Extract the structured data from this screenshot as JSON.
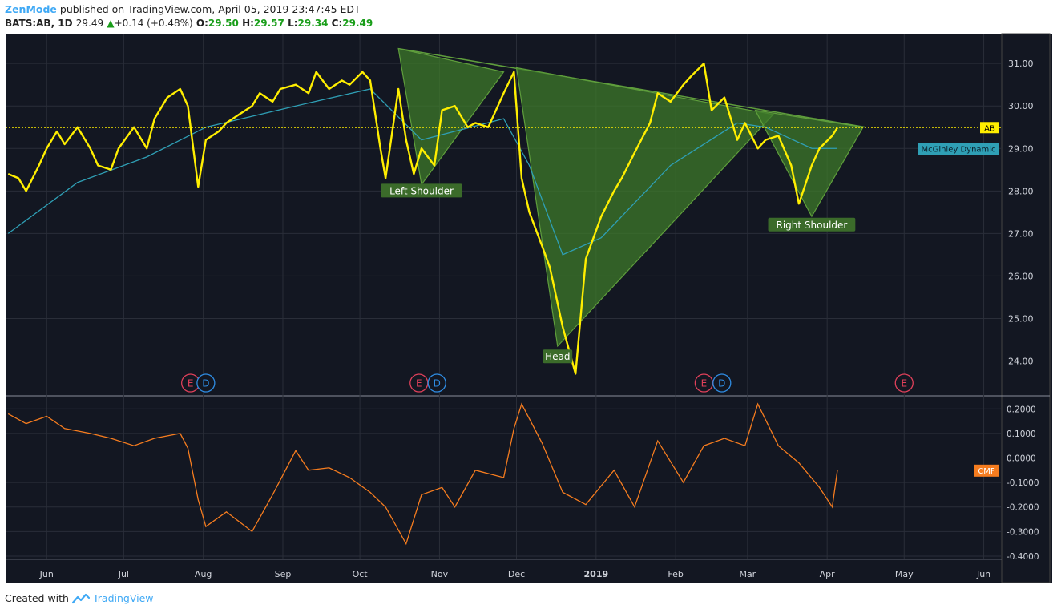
{
  "header": {
    "brand": "ZenMode",
    "published": "published on TradingView.com, April 05, 2019 23:47:45 EDT",
    "symbol": "BATS:AB, 1D",
    "last": "29.49",
    "change": "+0.14 (+0.48%)",
    "open_label": "O:",
    "open": "29.50",
    "high_label": "H:",
    "high": "29.57",
    "low_label": "L:",
    "low": "29.34",
    "close_label": "C:",
    "close": "29.49"
  },
  "footer": {
    "created_with": "Created with",
    "tradingview": "TradingView"
  },
  "colors": {
    "background": "#131722",
    "price": "#ffee00",
    "mcginley": "#2f9fb5",
    "cmf": "#f57c1f",
    "pattern_fill": "#3d7a2a",
    "pattern_stroke": "#5f9e3c",
    "earnings": "#e0405a",
    "dividend": "#2f8de4",
    "grid": "#2a2e39",
    "axis_text": "#d1d4dc"
  },
  "chart_data": [
    {
      "type": "line",
      "series": [
        {
          "name": "AB",
          "x": [
            "2018-05-17",
            "2018-05-21",
            "2018-05-24",
            "2018-05-29",
            "2018-06-01",
            "2018-06-05",
            "2018-06-08",
            "2018-06-13",
            "2018-06-18",
            "2018-06-21",
            "2018-06-26",
            "2018-06-29",
            "2018-07-05",
            "2018-07-10",
            "2018-07-13",
            "2018-07-18",
            "2018-07-23",
            "2018-07-26",
            "2018-07-30",
            "2018-08-02",
            "2018-08-07",
            "2018-08-10",
            "2018-08-15",
            "2018-08-20",
            "2018-08-23",
            "2018-08-28",
            "2018-08-31",
            "2018-09-06",
            "2018-09-11",
            "2018-09-14",
            "2018-09-19",
            "2018-09-24",
            "2018-09-27",
            "2018-10-02",
            "2018-10-05",
            "2018-10-09",
            "2018-10-11",
            "2018-10-16",
            "2018-10-19",
            "2018-10-22",
            "2018-10-25",
            "2018-10-30",
            "2018-11-02",
            "2018-11-07",
            "2018-11-12",
            "2018-11-15",
            "2018-11-20",
            "2018-11-26",
            "2018-11-30",
            "2018-12-03",
            "2018-12-06",
            "2018-12-11",
            "2018-12-14",
            "2018-12-19",
            "2018-12-24",
            "2018-12-28",
            "2019-01-03",
            "2019-01-08",
            "2019-01-11",
            "2019-01-16",
            "2019-01-22",
            "2019-01-25",
            "2019-01-30",
            "2019-02-04",
            "2019-02-07",
            "2019-02-12",
            "2019-02-15",
            "2019-02-20",
            "2019-02-25",
            "2019-02-28",
            "2019-03-05",
            "2019-03-08",
            "2019-03-13",
            "2019-03-18",
            "2019-03-21",
            "2019-03-26",
            "2019-03-29",
            "2019-04-03",
            "2019-04-05"
          ],
          "values": [
            28.4,
            28.3,
            28.0,
            28.6,
            29.0,
            29.4,
            29.1,
            29.5,
            29.0,
            28.6,
            28.5,
            29.0,
            29.5,
            29.0,
            29.7,
            30.2,
            30.4,
            30.0,
            28.1,
            29.2,
            29.4,
            29.6,
            29.8,
            30.0,
            30.3,
            30.1,
            30.4,
            30.5,
            30.3,
            30.8,
            30.4,
            30.6,
            30.5,
            30.8,
            30.6,
            29.0,
            28.3,
            30.4,
            29.2,
            28.4,
            29.0,
            28.6,
            29.9,
            30.0,
            29.5,
            29.6,
            29.5,
            30.3,
            30.8,
            28.3,
            27.5,
            26.7,
            26.2,
            24.8,
            23.7,
            26.4,
            27.4,
            28.0,
            28.3,
            28.9,
            29.6,
            30.3,
            30.1,
            30.5,
            30.7,
            31.0,
            29.9,
            30.2,
            29.2,
            29.6,
            29.0,
            29.2,
            29.3,
            28.6,
            27.7,
            28.6,
            29.0,
            29.3,
            29.49
          ]
        },
        {
          "name": "McGinley Dynamic",
          "x": [
            "2018-05-17",
            "2018-06-13",
            "2018-07-10",
            "2018-08-02",
            "2018-09-06",
            "2018-10-05",
            "2018-10-25",
            "2018-11-26",
            "2018-12-06",
            "2018-12-19",
            "2019-01-03",
            "2019-01-30",
            "2019-02-25",
            "2019-03-08",
            "2019-03-26",
            "2019-04-05"
          ],
          "values": [
            27.0,
            28.2,
            28.8,
            29.5,
            30.0,
            30.4,
            29.2,
            29.7,
            28.6,
            26.5,
            26.9,
            28.6,
            29.6,
            29.5,
            29.0,
            29.0
          ]
        }
      ],
      "ylim": [
        23.2,
        31.7
      ],
      "yticks": [
        "31.00",
        "30.00",
        "29.00",
        "28.00",
        "27.00",
        "26.00",
        "25.00",
        "24.00"
      ],
      "xticks": [
        "Jun",
        "Jul",
        "Aug",
        "Sep",
        "Oct",
        "Nov",
        "Dec",
        "2019",
        "Feb",
        "Mar",
        "Apr",
        "May",
        "Jun"
      ],
      "last_price_label": "AB",
      "indicator_label": "McGinley Dynamic",
      "annotations": [
        "Left Shoulder",
        "Head",
        "Right Shoulder"
      ],
      "events": [
        "E",
        "D",
        "E",
        "D",
        "E",
        "D",
        "E"
      ]
    },
    {
      "type": "line",
      "series": [
        {
          "name": "CMF",
          "x": [
            "2018-05-17",
            "2018-05-24",
            "2018-06-01",
            "2018-06-08",
            "2018-06-18",
            "2018-06-26",
            "2018-07-05",
            "2018-07-13",
            "2018-07-23",
            "2018-07-26",
            "2018-07-30",
            "2018-08-02",
            "2018-08-10",
            "2018-08-20",
            "2018-08-28",
            "2018-09-06",
            "2018-09-11",
            "2018-09-19",
            "2018-09-27",
            "2018-10-05",
            "2018-10-11",
            "2018-10-19",
            "2018-10-25",
            "2018-11-02",
            "2018-11-07",
            "2018-11-15",
            "2018-11-26",
            "2018-11-30",
            "2018-12-03",
            "2018-12-11",
            "2018-12-19",
            "2018-12-28",
            "2019-01-08",
            "2019-01-16",
            "2019-01-25",
            "2019-02-04",
            "2019-02-12",
            "2019-02-20",
            "2019-02-28",
            "2019-03-05",
            "2019-03-13",
            "2019-03-21",
            "2019-03-29",
            "2019-04-03",
            "2019-04-05"
          ],
          "values": [
            0.18,
            0.14,
            0.17,
            0.12,
            0.1,
            0.08,
            0.05,
            0.08,
            0.1,
            0.04,
            -0.17,
            -0.28,
            -0.22,
            -0.3,
            -0.15,
            0.03,
            -0.05,
            -0.04,
            -0.08,
            -0.14,
            -0.2,
            -0.35,
            -0.15,
            -0.12,
            -0.2,
            -0.05,
            -0.08,
            0.12,
            0.22,
            0.06,
            -0.14,
            -0.19,
            -0.05,
            -0.2,
            0.07,
            -0.1,
            0.05,
            0.08,
            0.05,
            0.22,
            0.05,
            -0.02,
            -0.12,
            -0.2,
            -0.05
          ]
        }
      ],
      "ylim": [
        -0.41,
        0.25
      ],
      "yticks": [
        "0.2000",
        "0.1000",
        "0.0000",
        "-0.1000",
        "-0.2000",
        "-0.3000",
        "-0.4000"
      ],
      "last_value_label": "CMF"
    }
  ]
}
